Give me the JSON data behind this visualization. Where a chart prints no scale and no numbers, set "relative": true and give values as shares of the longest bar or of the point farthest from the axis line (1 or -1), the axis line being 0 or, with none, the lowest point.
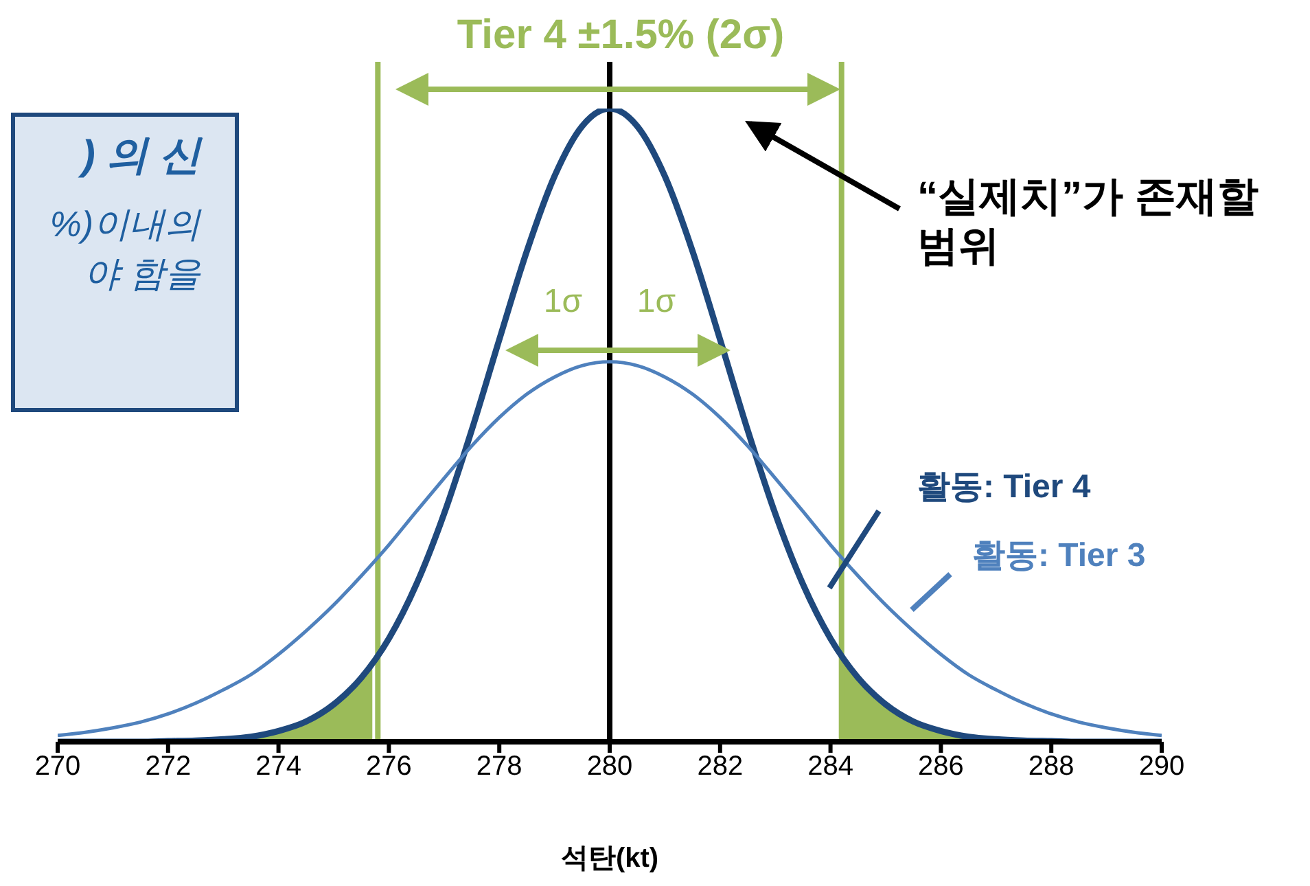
{
  "chart_data": {
    "type": "line",
    "xlabel": "석탄(kt)",
    "xlim": [
      270,
      290
    ],
    "xticks": [
      270,
      272,
      274,
      276,
      278,
      280,
      282,
      284,
      286,
      288,
      290
    ],
    "relative": true,
    "grid": false,
    "legend": false,
    "marker": "none",
    "tick_labels": "x",
    "annotations": [
      "Tier 4 ±1.5% (2σ)",
      "1σ",
      "1σ",
      "“실제치”가 존재할 범위",
      ") 의 신",
      "%)이내의",
      "야 함을"
    ],
    "ref_lines": [
      {
        "axis": "x",
        "value": 275.8,
        "color": "#9bbb59"
      },
      {
        "axis": "x",
        "value": 284.2,
        "color": "#9bbb59"
      },
      {
        "axis": "x",
        "value": 280,
        "color": "#000000"
      }
    ],
    "series": [
      {
        "name": "활동: Tier 4",
        "color": "#1f497d",
        "x": [
          270,
          270.5,
          271,
          271.5,
          272,
          272.5,
          273,
          273.5,
          274,
          274.5,
          275,
          275.5,
          276,
          276.5,
          277,
          277.5,
          278,
          278.5,
          279,
          279.5,
          280,
          280.5,
          281,
          281.5,
          282,
          282.5,
          283,
          283.5,
          284,
          284.5,
          285,
          285.5,
          286,
          286.5,
          287,
          287.5,
          288,
          288.5,
          289,
          289.5,
          290
        ],
        "values": [
          0,
          0,
          0,
          0,
          0.001,
          0.002,
          0.004,
          0.008,
          0.017,
          0.032,
          0.059,
          0.101,
          0.163,
          0.249,
          0.36,
          0.492,
          0.635,
          0.775,
          0.893,
          0.972,
          1,
          0.972,
          0.893,
          0.775,
          0.635,
          0.492,
          0.36,
          0.249,
          0.163,
          0.101,
          0.059,
          0.032,
          0.017,
          0.008,
          0.004,
          0.002,
          0.001,
          0,
          0,
          0,
          0
        ]
      },
      {
        "name": "활동: Tier 3",
        "color": "#4f81bd",
        "x": [
          270,
          270.5,
          271,
          271.5,
          272,
          272.5,
          273,
          273.5,
          274,
          274.5,
          275,
          275.5,
          276,
          276.5,
          277,
          277.5,
          278,
          278.5,
          279,
          279.5,
          280,
          280.5,
          281,
          281.5,
          282,
          282.5,
          283,
          283.5,
          284,
          284.5,
          285,
          285.5,
          286,
          286.5,
          287,
          287.5,
          288,
          288.5,
          289,
          289.5,
          290
        ],
        "values": [
          0.01,
          0.015,
          0.022,
          0.031,
          0.044,
          0.061,
          0.082,
          0.106,
          0.138,
          0.175,
          0.216,
          0.262,
          0.311,
          0.364,
          0.416,
          0.467,
          0.512,
          0.549,
          0.576,
          0.594,
          0.6,
          0.594,
          0.576,
          0.549,
          0.512,
          0.467,
          0.416,
          0.364,
          0.311,
          0.262,
          0.216,
          0.175,
          0.138,
          0.106,
          0.082,
          0.061,
          0.044,
          0.031,
          0.022,
          0.015,
          0.01
        ]
      },
      {
        "type": "area",
        "color": "#9bbb59",
        "x": [
          272.5,
          273,
          273.5,
          274,
          274.5,
          275,
          275.5,
          275.7
        ],
        "values": [
          0.002,
          0.004,
          0.008,
          0.017,
          0.032,
          0.059,
          0.101,
          0.13
        ]
      },
      {
        "type": "area",
        "color": "#9bbb59",
        "x": [
          284.2,
          284.5,
          285,
          285.5,
          286,
          286.5,
          287,
          287.2
        ],
        "values": [
          0.13,
          0.101,
          0.059,
          0.032,
          0.017,
          0.008,
          0.004,
          0.003
        ]
      }
    ]
  }
}
